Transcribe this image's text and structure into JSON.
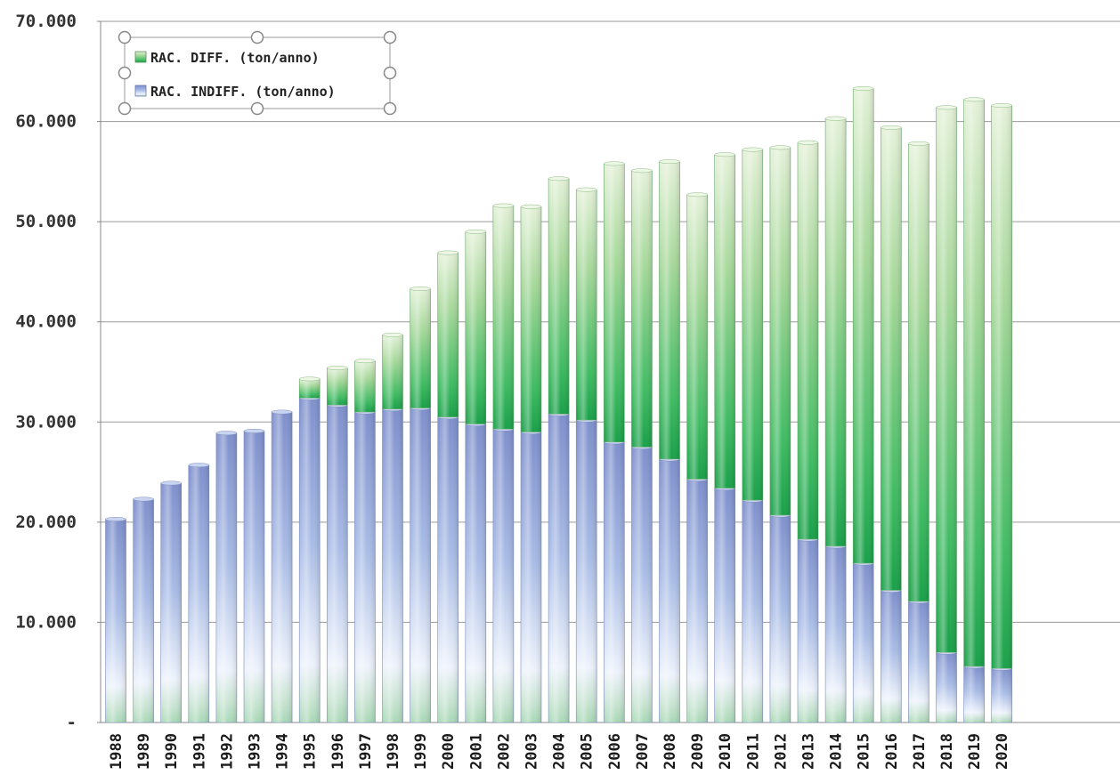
{
  "chart_data": {
    "type": "bar",
    "stacked": true,
    "categories": [
      "1988",
      "1989",
      "1990",
      "1991",
      "1992",
      "1993",
      "1994",
      "1995",
      "1996",
      "1997",
      "1998",
      "1999",
      "2000",
      "2001",
      "2002",
      "2003",
      "2004",
      "2005",
      "2006",
      "2007",
      "2008",
      "2009",
      "2010",
      "2011",
      "2012",
      "2013",
      "2014",
      "2015",
      "2016",
      "2017",
      "2018",
      "2019",
      "2020"
    ],
    "series": [
      {
        "name": "RAC. INDIFF. (ton/anno)",
        "color": "#8ea3d8",
        "values": [
          20300,
          22300,
          23900,
          25700,
          28900,
          29100,
          31000,
          32400,
          31700,
          31000,
          31300,
          31400,
          30500,
          29800,
          29300,
          29000,
          30800,
          30200,
          28000,
          27500,
          26300,
          24300,
          23400,
          22200,
          20700,
          18300,
          17600,
          15900,
          13200,
          12100,
          7000,
          5600,
          5400
        ]
      },
      {
        "name": "RAC. DIFF. (ton/anno)",
        "color": "#2fb35a",
        "values": [
          0,
          0,
          0,
          0,
          0,
          0,
          0,
          1900,
          3700,
          5100,
          7400,
          11900,
          16400,
          19200,
          22300,
          22500,
          23500,
          23000,
          27800,
          27600,
          29700,
          28400,
          33300,
          35000,
          36700,
          39600,
          42700,
          47400,
          46200,
          45700,
          54400,
          56600,
          56200
        ]
      }
    ],
    "ylim": [
      0,
      70000
    ],
    "yticks": [
      {
        "value": 0,
        "label": "-"
      },
      {
        "value": 10000,
        "label": "10.000"
      },
      {
        "value": 20000,
        "label": "20.000"
      },
      {
        "value": 30000,
        "label": "30.000"
      },
      {
        "value": 40000,
        "label": "40.000"
      },
      {
        "value": 50000,
        "label": "50.000"
      },
      {
        "value": 60000,
        "label": "60.000"
      },
      {
        "value": 70000,
        "label": "70.000"
      }
    ],
    "legend": {
      "placement": "top-left",
      "entries": [
        "RAC. DIFF. (ton/anno)",
        "RAC. INDIFF. (ton/anno)"
      ]
    },
    "grid": true
  }
}
